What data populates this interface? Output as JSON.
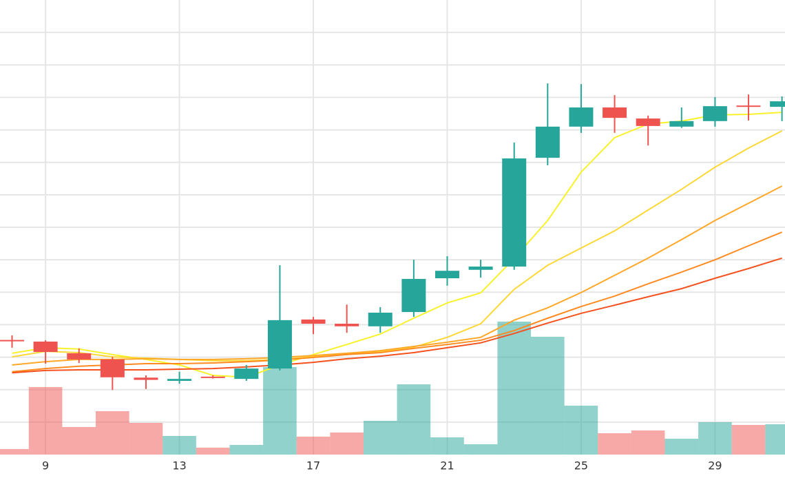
{
  "chart_data": {
    "type": "candlestick",
    "x": [
      8,
      9,
      10,
      11,
      12,
      13,
      14,
      15,
      16,
      17,
      18,
      19,
      20,
      21,
      22,
      23,
      24,
      25,
      26,
      27,
      28,
      29,
      30,
      31
    ],
    "open": [
      3.53,
      3.48,
      3.12,
      2.93,
      2.37,
      2.27,
      2.4,
      2.33,
      2.65,
      4.16,
      4.03,
      3.95,
      4.39,
      5.43,
      5.69,
      5.79,
      9.14,
      10.1,
      10.69,
      10.35,
      10.1,
      10.27,
      10.75,
      10.71
    ],
    "high": [
      3.67,
      3.52,
      3.27,
      3.01,
      2.44,
      2.55,
      2.44,
      2.76,
      5.83,
      4.24,
      4.62,
      4.54,
      6.0,
      6.11,
      6.0,
      9.61,
      11.43,
      11.41,
      11.07,
      10.44,
      10.69,
      11.01,
      11.09,
      11.03
    ],
    "low": [
      3.29,
      2.8,
      2.82,
      1.99,
      2.02,
      2.18,
      2.34,
      2.27,
      2.59,
      3.71,
      3.75,
      3.75,
      4.24,
      5.2,
      5.45,
      5.69,
      8.91,
      9.91,
      9.91,
      9.52,
      10.06,
      10.1,
      10.29,
      10.27
    ],
    "close": [
      3.5,
      3.16,
      2.93,
      2.38,
      2.3,
      2.33,
      2.38,
      2.65,
      4.14,
      4.03,
      3.95,
      4.37,
      5.41,
      5.66,
      5.79,
      9.12,
      10.1,
      10.69,
      10.37,
      10.12,
      10.27,
      10.73,
      10.71,
      10.88
    ],
    "volume": [
      0.4,
      4.9,
      2.0,
      3.15,
      2.3,
      1.35,
      0.5,
      0.7,
      6.35,
      1.3,
      1.6,
      2.45,
      5.1,
      1.25,
      0.75,
      9.65,
      8.55,
      3.55,
      1.55,
      1.75,
      1.15,
      2.35,
      2.15,
      2.2
    ],
    "up_color": "#26a69a",
    "down_color": "#ef5350",
    "volume_opacity": 0.5,
    "series": [
      {
        "color": "#f7f229",
        "values": [
          3.12,
          3.29,
          3.25,
          3.08,
          2.93,
          2.76,
          2.44,
          2.38,
          2.76,
          3.08,
          3.39,
          3.71,
          4.2,
          4.67,
          4.98,
          6.04,
          7.21,
          8.7,
          9.76,
          10.18,
          10.27,
          10.46,
          10.48,
          10.54
        ]
      },
      {
        "color": "#fdd835",
        "values": [
          3.01,
          3.18,
          3.14,
          3.01,
          2.97,
          2.93,
          2.89,
          2.89,
          2.93,
          3.01,
          3.08,
          3.18,
          3.31,
          3.61,
          4.03,
          5.09,
          5.83,
          6.36,
          6.89,
          7.53,
          8.17,
          8.85,
          9.44,
          9.97
        ]
      },
      {
        "color": "#ffa726",
        "values": [
          2.76,
          2.86,
          2.93,
          2.93,
          2.95,
          2.93,
          2.93,
          2.95,
          2.99,
          3.05,
          3.12,
          3.2,
          3.33,
          3.46,
          3.61,
          4.14,
          4.52,
          4.99,
          5.52,
          6.05,
          6.62,
          7.21,
          7.74,
          8.27
        ]
      },
      {
        "color": "#ff8a1f",
        "values": [
          2.55,
          2.65,
          2.72,
          2.76,
          2.8,
          2.8,
          2.82,
          2.86,
          2.91,
          2.99,
          3.08,
          3.14,
          3.27,
          3.39,
          3.52,
          3.82,
          4.2,
          4.56,
          4.88,
          5.26,
          5.62,
          6.0,
          6.43,
          6.85
        ]
      },
      {
        "color": "#f4511e",
        "values": [
          2.52,
          2.59,
          2.61,
          2.61,
          2.61,
          2.63,
          2.65,
          2.7,
          2.76,
          2.84,
          2.95,
          3.03,
          3.14,
          3.29,
          3.44,
          3.73,
          4.05,
          4.35,
          4.6,
          4.86,
          5.11,
          5.43,
          5.73,
          6.05
        ]
      }
    ],
    "xlim": [
      7.64,
      31.09
    ],
    "xticks": [
      9,
      13,
      17,
      21,
      25,
      29
    ],
    "ylim": [
      0,
      14
    ],
    "yticks": [
      1,
      2,
      3,
      4,
      5,
      6,
      7,
      8,
      9,
      10,
      11,
      12,
      13
    ],
    "volume_lim": [
      0,
      33
    ],
    "grid": true
  }
}
